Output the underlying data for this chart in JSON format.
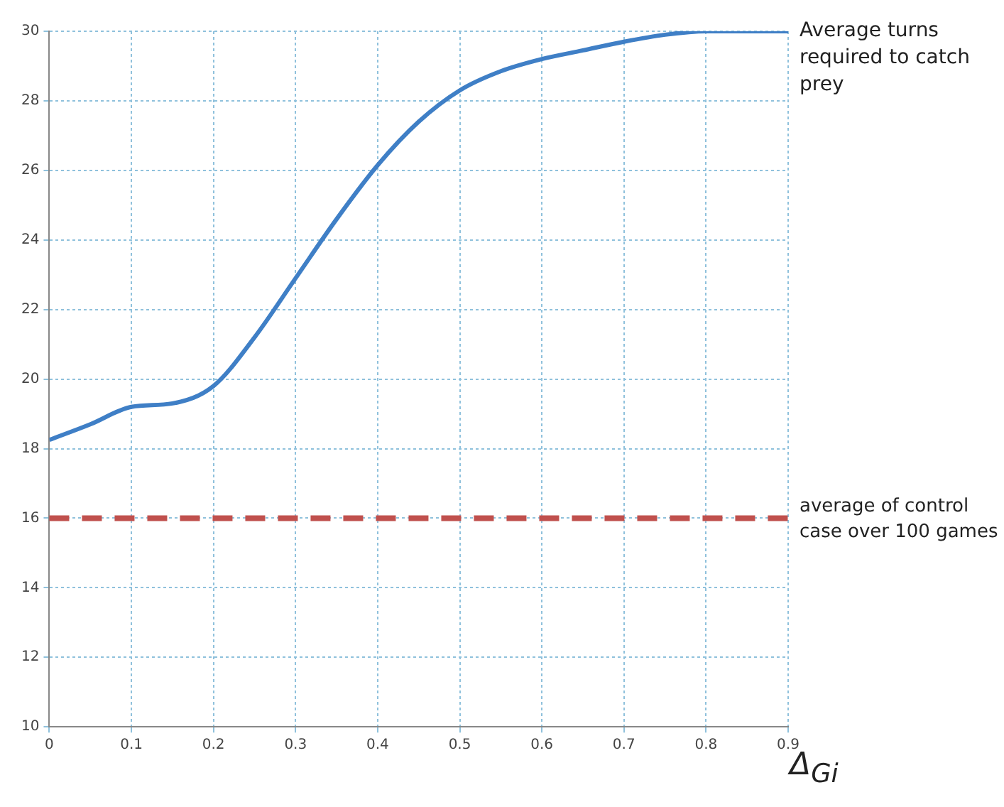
{
  "chart_data": {
    "type": "line",
    "xlabel": "Δ$_{Gi}$",
    "xlim": [
      0,
      0.9
    ],
    "xticks": [
      0,
      0.1,
      0.2,
      0.3,
      0.4,
      0.5,
      0.6,
      0.7,
      0.8,
      0.9
    ],
    "ylim": [
      10,
      30
    ],
    "yticks": [
      10,
      12,
      14,
      16,
      18,
      20,
      22,
      24,
      26,
      28,
      30
    ],
    "grid": true,
    "legend": false,
    "marker": "none",
    "line_style": "solid",
    "series": [
      {
        "name": "Average turns required to catch prey",
        "color": "#3f7fc6",
        "x": [
          0,
          0.05,
          0.1,
          0.15,
          0.2,
          0.25,
          0.3,
          0.35,
          0.4,
          0.45,
          0.5,
          0.55,
          0.6,
          0.65,
          0.7,
          0.75,
          0.8,
          0.85,
          0.9
        ],
        "values": [
          18.25,
          18.7,
          19.2,
          19.3,
          19.8,
          21.2,
          22.9,
          24.6,
          26.15,
          27.4,
          28.3,
          28.85,
          29.2,
          29.45,
          29.7,
          29.9,
          30,
          30,
          30
        ]
      }
    ],
    "ref_lines": [
      {
        "axis": "y",
        "value": 16,
        "label": "average of control case over 100 games",
        "color": "#c0504d",
        "line_style": "dashed"
      }
    ]
  }
}
